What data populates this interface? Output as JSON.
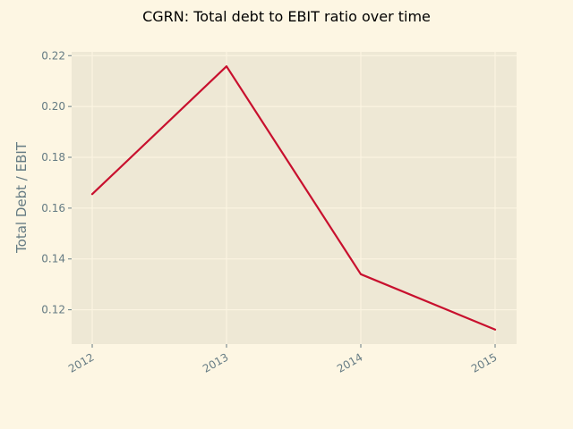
{
  "chart_data": {
    "type": "line",
    "title": "CGRN: Total debt to EBIT ratio over time",
    "xlabel": "",
    "ylabel": "Total Debt / EBIT",
    "x": [
      "2012",
      "2013",
      "2014",
      "2015"
    ],
    "series": [
      {
        "values": [
          0.1655,
          0.2158,
          0.134,
          0.1122
        ]
      }
    ],
    "ylim": [
      0.1065,
      0.2215
    ],
    "yticks": [
      "0.12",
      "0.14",
      "0.16",
      "0.18",
      "0.20",
      "0.22"
    ],
    "grid": true,
    "legend": "none"
  },
  "colors": {
    "figure_bg": "#fdf6e3",
    "axes_bg": "#eee8d5",
    "grid": "#fdf6e3",
    "line": "#c8102e",
    "tick_text": "#657b83"
  }
}
